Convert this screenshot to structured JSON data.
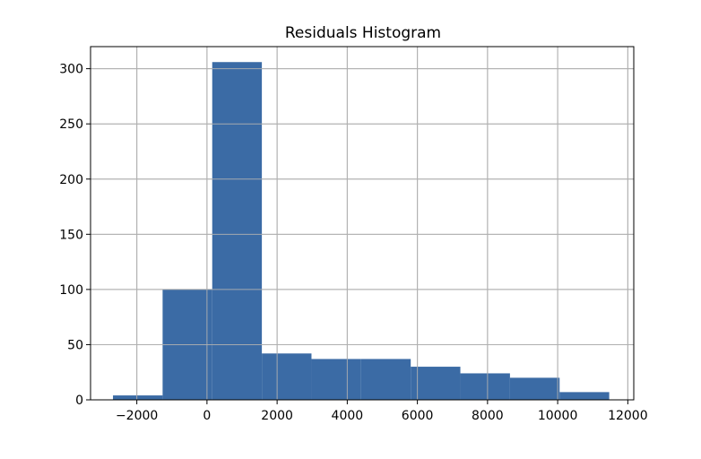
{
  "chart_data": {
    "type": "bar",
    "title": "Residuals Histogram",
    "xlabel": "",
    "ylabel": "",
    "xlim": [
      -3320,
      12170
    ],
    "ylim": [
      0,
      320
    ],
    "grid": true,
    "bin_edges": [
      -2680,
      -1265,
      150,
      1565,
      2980,
      4395,
      5810,
      7225,
      8640,
      10055,
      11470
    ],
    "counts": [
      4,
      100,
      306,
      42,
      37,
      37,
      30,
      24,
      20,
      7
    ],
    "x_ticks": [
      -2000,
      0,
      2000,
      4000,
      6000,
      8000,
      10000,
      12000
    ],
    "y_ticks": [
      0,
      50,
      100,
      150,
      200,
      250,
      300
    ],
    "bar_color": "#3b6ba5",
    "grid_color": "#b0b0b0"
  }
}
